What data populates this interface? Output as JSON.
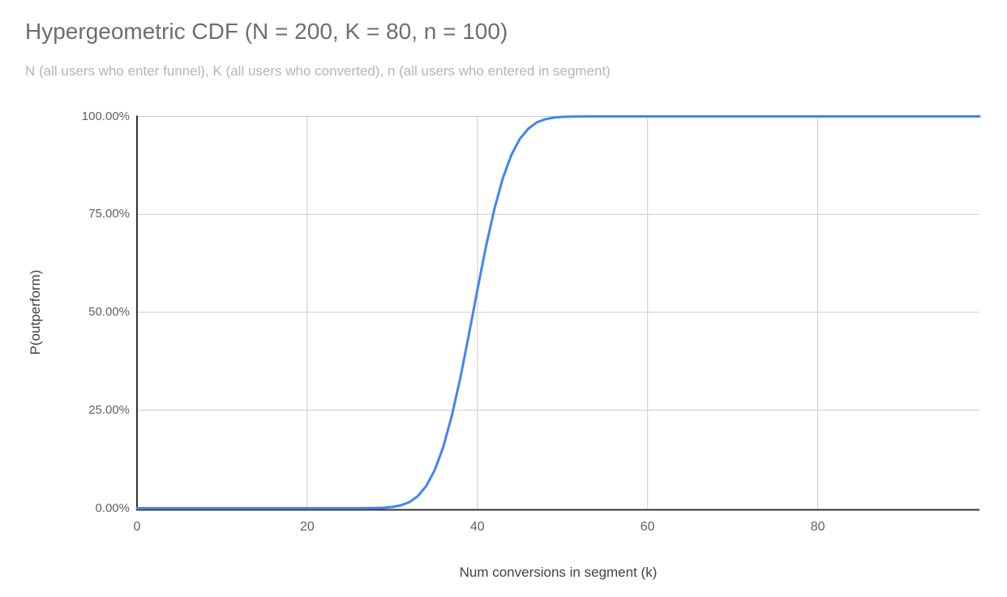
{
  "chart_data": {
    "type": "line",
    "title": "Hypergeometric CDF (N = 200, K = 80, n = 100)",
    "subtitle": "N (all users who enter funnel), K (all users who converted), n (all users who entered in segment)",
    "xlabel": "Num conversions in segment (k)",
    "ylabel": "P(outperform)",
    "xlim": [
      0,
      99
    ],
    "ylim": [
      0,
      1
    ],
    "grid": true,
    "legend_position": "none",
    "x_ticks": [
      {
        "value": 0,
        "label": "0"
      },
      {
        "value": 20,
        "label": "20"
      },
      {
        "value": 40,
        "label": "40"
      },
      {
        "value": 60,
        "label": "60"
      },
      {
        "value": 80,
        "label": "80"
      }
    ],
    "y_ticks": [
      {
        "value": 0,
        "label": "0.00%"
      },
      {
        "value": 0.25,
        "label": "25.00%"
      },
      {
        "value": 0.5,
        "label": "50.00%"
      },
      {
        "value": 0.75,
        "label": "75.00%"
      },
      {
        "value": 1,
        "label": "100.00%"
      }
    ],
    "series": [
      {
        "name": "P(outperform)",
        "color": "#4285f4",
        "x": [
          0,
          1,
          2,
          3,
          4,
          5,
          6,
          7,
          8,
          9,
          10,
          11,
          12,
          13,
          14,
          15,
          16,
          17,
          18,
          19,
          20,
          21,
          22,
          23,
          24,
          25,
          26,
          27,
          28,
          29,
          30,
          31,
          32,
          33,
          34,
          35,
          36,
          37,
          38,
          39,
          40,
          41,
          42,
          43,
          44,
          45,
          46,
          47,
          48,
          49,
          50,
          51,
          52,
          53,
          54,
          55,
          56,
          57,
          58,
          59,
          60,
          61,
          62,
          63,
          64,
          65,
          66,
          67,
          68,
          69,
          70,
          71,
          72,
          73,
          74,
          75,
          76,
          77,
          78,
          79,
          80,
          81,
          82,
          83,
          84,
          85,
          86,
          87,
          88,
          89,
          90,
          91,
          92,
          93,
          94,
          95,
          96,
          97,
          98,
          99
        ],
        "y": [
          0,
          0,
          0,
          0,
          0,
          0,
          0,
          0,
          0,
          0,
          0,
          0,
          0,
          0,
          0,
          0,
          0,
          0,
          0,
          0,
          0,
          0,
          0,
          0,
          0,
          2e-05,
          6e-05,
          0.0002,
          0.0005,
          0.0013,
          0.0031,
          0.0072,
          0.0154,
          0.0307,
          0.0567,
          0.0977,
          0.157,
          0.236,
          0.333,
          0.443,
          0.557,
          0.667,
          0.764,
          0.843,
          0.902,
          0.943,
          0.969,
          0.985,
          0.993,
          0.997,
          0.9987,
          0.9995,
          0.9998,
          0.9999,
          1,
          1,
          1,
          1,
          1,
          1,
          1,
          1,
          1,
          1,
          1,
          1,
          1,
          1,
          1,
          1,
          1,
          1,
          1,
          1,
          1,
          1,
          1,
          1,
          1,
          1,
          1,
          1,
          1,
          1,
          1,
          1,
          1,
          1,
          1,
          1,
          1,
          1,
          1,
          1,
          1,
          1,
          1,
          1,
          1,
          1
        ]
      }
    ]
  },
  "colors": {
    "background": "#ffffff",
    "title": "#6e6e6e",
    "subtitle": "#b5b5b5",
    "tick_label": "#616161",
    "axis_title": "#424242",
    "gridline": "#cccccc",
    "axis_line": "#333333",
    "series": "#4285f4"
  }
}
